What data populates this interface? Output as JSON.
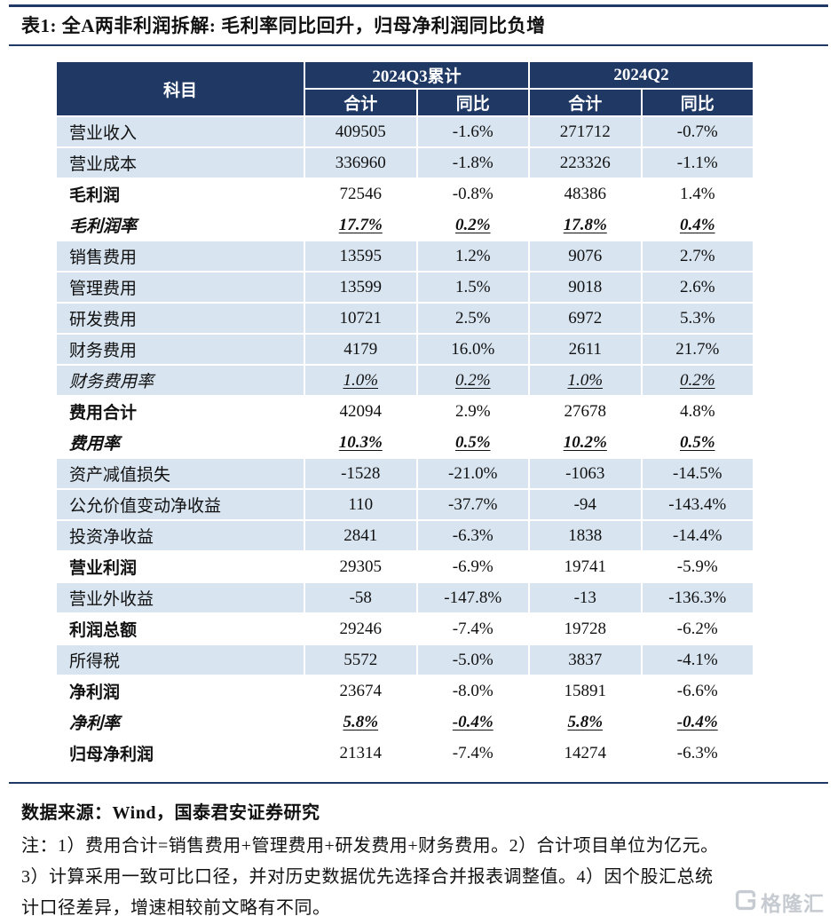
{
  "title": "表1: 全A两非利润拆解: 毛利率同比回升，归母净利润同比负增",
  "colors": {
    "navy": "#1f3864",
    "row_blue": "#d8e4f0",
    "logo_grey": "#c6cbd1"
  },
  "table": {
    "header": {
      "subject": "科目",
      "group1": "2024Q3累计",
      "group2": "2024Q2",
      "sub1": "合计",
      "sub2": "同比",
      "sub3": "合计",
      "sub4": "同比"
    },
    "rows": [
      {
        "label": "营业收入",
        "values": [
          "409505",
          "-1.6%",
          "271712",
          "-0.7%"
        ],
        "variant": "detail",
        "bg": "blue"
      },
      {
        "label": "营业成本",
        "values": [
          "336960",
          "-1.8%",
          "223326",
          "-1.1%"
        ],
        "variant": "detail",
        "bg": "blue"
      },
      {
        "label": "毛利润",
        "values": [
          "72546",
          "-0.8%",
          "48386",
          "1.4%"
        ],
        "variant": "summary",
        "bg": "white"
      },
      {
        "label": "毛利润率",
        "values": [
          "17.7%",
          "0.2%",
          "17.8%",
          "0.4%"
        ],
        "variant": "ratio",
        "bg": "white"
      },
      {
        "label": "销售费用",
        "values": [
          "13595",
          "1.2%",
          "9076",
          "2.7%"
        ],
        "variant": "detail",
        "bg": "blue"
      },
      {
        "label": "管理费用",
        "values": [
          "13599",
          "1.5%",
          "9018",
          "2.6%"
        ],
        "variant": "detail",
        "bg": "blue"
      },
      {
        "label": "研发费用",
        "values": [
          "10721",
          "2.5%",
          "6972",
          "5.3%"
        ],
        "variant": "detail",
        "bg": "blue"
      },
      {
        "label": "财务费用",
        "values": [
          "4179",
          "16.0%",
          "2611",
          "21.7%"
        ],
        "variant": "detail",
        "bg": "blue"
      },
      {
        "label": "财务费用率",
        "values": [
          "1.0%",
          "0.2%",
          "1.0%",
          "0.2%"
        ],
        "variant": "ratio-light",
        "bg": "blue"
      },
      {
        "label": "费用合计",
        "values": [
          "42094",
          "2.9%",
          "27678",
          "4.8%"
        ],
        "variant": "summary",
        "bg": "white"
      },
      {
        "label": "费用率",
        "values": [
          "10.3%",
          "0.5%",
          "10.2%",
          "0.5%"
        ],
        "variant": "ratio",
        "bg": "white"
      },
      {
        "label": "资产减值损失",
        "values": [
          "-1528",
          "-21.0%",
          "-1063",
          "-14.5%"
        ],
        "variant": "detail",
        "bg": "blue"
      },
      {
        "label": "公允价值变动净收益",
        "values": [
          "110",
          "-37.7%",
          "-94",
          "-143.4%"
        ],
        "variant": "detail",
        "bg": "blue"
      },
      {
        "label": "投资净收益",
        "values": [
          "2841",
          "-6.3%",
          "1838",
          "-14.4%"
        ],
        "variant": "detail",
        "bg": "blue"
      },
      {
        "label": "营业利润",
        "values": [
          "29305",
          "-6.9%",
          "19741",
          "-5.9%"
        ],
        "variant": "summary",
        "bg": "white"
      },
      {
        "label": "营业外收益",
        "values": [
          "-58",
          "-147.8%",
          "-13",
          "-136.3%"
        ],
        "variant": "detail",
        "bg": "blue"
      },
      {
        "label": "利润总额",
        "values": [
          "29246",
          "-7.4%",
          "19728",
          "-6.2%"
        ],
        "variant": "summary",
        "bg": "white"
      },
      {
        "label": "所得税",
        "values": [
          "5572",
          "-5.0%",
          "3837",
          "-4.1%"
        ],
        "variant": "detail",
        "bg": "blue"
      },
      {
        "label": "净利润",
        "values": [
          "23674",
          "-8.0%",
          "15891",
          "-6.6%"
        ],
        "variant": "summary",
        "bg": "white"
      },
      {
        "label": "净利率",
        "values": [
          "5.8%",
          "-0.4%",
          "5.8%",
          "-0.4%"
        ],
        "variant": "ratio",
        "bg": "white"
      },
      {
        "label": "归母净利润",
        "values": [
          "21314",
          "-7.4%",
          "14274",
          "-6.3%"
        ],
        "variant": "summary",
        "bg": "white"
      }
    ]
  },
  "footer": {
    "source": "数据来源：Wind，国泰君安证券研究",
    "notes": [
      "注：1）费用合计=销售费用+管理费用+研发费用+财务费用。2）合计项目单位为亿元。",
      "3）计算采用一致可比口径，并对历史数据优先选择合并报表调整值。4）因个股汇总统",
      "计口径差异，增速相较前文略有不同。"
    ],
    "logo_text": "格隆汇"
  }
}
